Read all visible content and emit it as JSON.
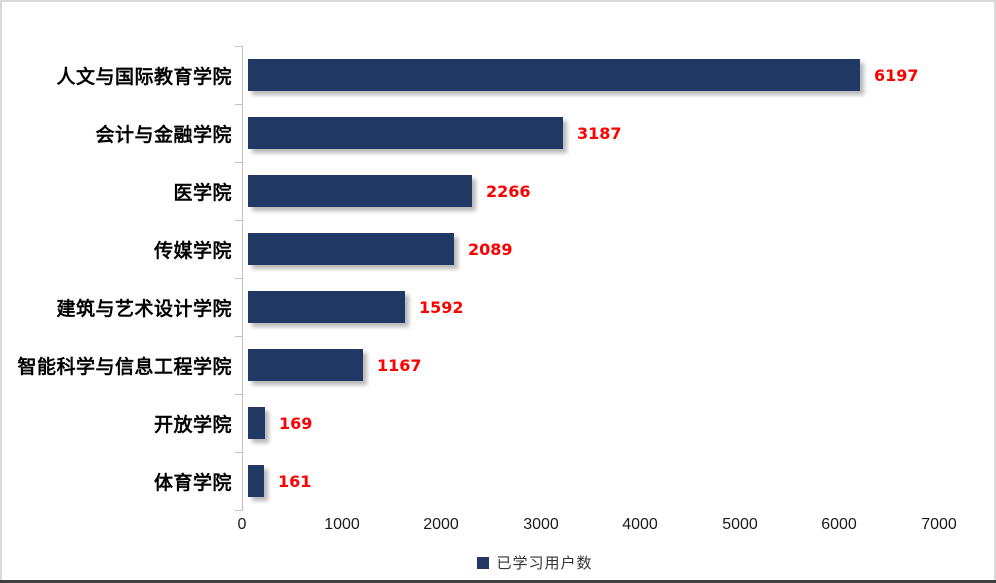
{
  "chart_data": {
    "type": "bar",
    "orientation": "horizontal",
    "title": "",
    "categories": [
      "人文与国际教育学院",
      "会计与金融学院",
      "医学院",
      "传媒学院",
      "建筑与艺术设计学院",
      "智能科学与信息工程学院",
      "开放学院",
      "体育学院"
    ],
    "values": [
      6197,
      3187,
      2266,
      2089,
      1592,
      1167,
      169,
      161
    ],
    "series_name": "已学习用户数",
    "xlim": [
      0,
      7000
    ],
    "x_ticks": [
      0,
      1000,
      2000,
      3000,
      4000,
      5000,
      6000,
      7000
    ],
    "grid": false,
    "legend_position": "bottom",
    "data_labels": true
  },
  "legend": {
    "label": "已学习用户数"
  },
  "colors": {
    "bar": "#203864",
    "value_label": "#ff0000",
    "axis_line": "#c0c0c0",
    "tick_label": "#1a1a1a",
    "chart_border": "#d9d9d9",
    "bottom_rule": "#404040",
    "legend_swatch": "#203864"
  }
}
